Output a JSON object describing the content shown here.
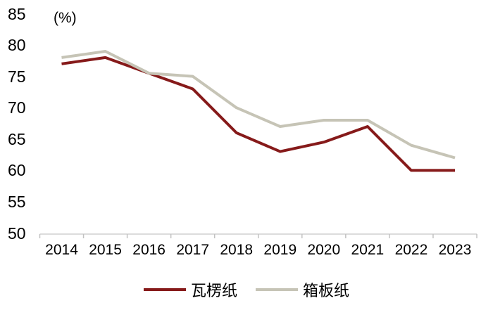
{
  "chart_data": {
    "type": "line",
    "title": "",
    "unit": "(%)",
    "categories": [
      "2014",
      "2015",
      "2016",
      "2017",
      "2018",
      "2019",
      "2020",
      "2021",
      "2022",
      "2023"
    ],
    "series": [
      {
        "name": "瓦楞纸",
        "color": "#861A1A",
        "values": [
          77,
          78,
          75.5,
          73,
          66,
          63,
          64.5,
          67,
          60,
          60
        ]
      },
      {
        "name": "箱板纸",
        "color": "#C6C4B6",
        "values": [
          78,
          79,
          75.5,
          75,
          70,
          67,
          68,
          68,
          64,
          62
        ]
      }
    ],
    "ylim": [
      50,
      85
    ],
    "yticks": [
      85,
      80,
      75,
      70,
      65,
      60,
      55,
      50
    ],
    "xlabel": "",
    "ylabel": "(%)",
    "grid": false,
    "legend_position": "bottom",
    "axis_color": "#DCDCDC",
    "tick_color": "#C2C2C2"
  }
}
